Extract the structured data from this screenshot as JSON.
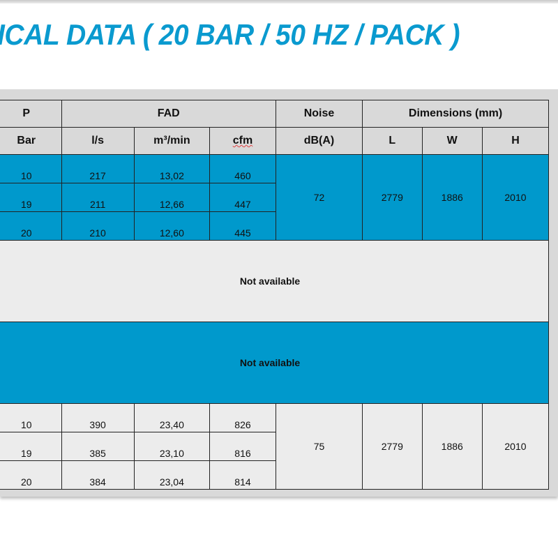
{
  "title": "ICAL DATA ( 20 BAR / 50 HZ / PACK )",
  "colors": {
    "accent": "#0099cc",
    "title": "#0a9acf",
    "header_bg": "#d9d9d9",
    "light_row": "#ececec"
  },
  "header": {
    "groups": [
      "P",
      "FAD",
      "Noise",
      "Dimensions (mm)"
    ],
    "units": [
      "Bar",
      "l/s",
      "m³/min",
      "cfm",
      "dB(A)",
      "L",
      "W",
      "H"
    ]
  },
  "block1": {
    "rows": [
      {
        "bar": "10",
        "ls": "217",
        "m3min": "13,02",
        "cfm": "460"
      },
      {
        "bar": "19",
        "ls": "211",
        "m3min": "12,66",
        "cfm": "447"
      },
      {
        "bar": "20",
        "ls": "210",
        "m3min": "12,60",
        "cfm": "445"
      }
    ],
    "noise": "72",
    "L": "2779",
    "W": "1886",
    "H": "2010"
  },
  "block2": {
    "text": "Not available"
  },
  "block3": {
    "text": "Not available"
  },
  "block4": {
    "rows": [
      {
        "bar": "10",
        "ls": "390",
        "m3min": "23,40",
        "cfm": "826"
      },
      {
        "bar": "19",
        "ls": "385",
        "m3min": "23,10",
        "cfm": "816"
      },
      {
        "bar": "20",
        "ls": "384",
        "m3min": "23,04",
        "cfm": "814"
      }
    ],
    "noise": "75",
    "L": "2779",
    "W": "1886",
    "H": "2010"
  }
}
